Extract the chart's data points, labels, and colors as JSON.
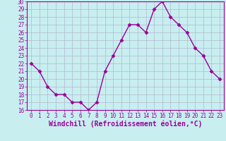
{
  "x": [
    0,
    1,
    2,
    3,
    4,
    5,
    6,
    7,
    8,
    9,
    10,
    11,
    12,
    13,
    14,
    15,
    16,
    17,
    18,
    19,
    20,
    21,
    22,
    23
  ],
  "y": [
    22,
    21,
    19,
    18,
    18,
    17,
    17,
    16,
    17,
    21,
    23,
    25,
    27,
    27,
    26,
    29,
    30,
    28,
    27,
    26,
    24,
    23,
    21,
    20
  ],
  "line_color": "#990099",
  "marker": "D",
  "marker_size": 2.5,
  "bg_color": "#c8eef0",
  "grid_color": "#b0b8d0",
  "xlabel": "Windchill (Refroidissement éolien,°C)",
  "xlabel_color": "#990099",
  "xlim": [
    -0.5,
    23.5
  ],
  "ylim": [
    16,
    30
  ],
  "yticks": [
    16,
    17,
    18,
    19,
    20,
    21,
    22,
    23,
    24,
    25,
    26,
    27,
    28,
    29,
    30
  ],
  "xticks": [
    0,
    1,
    2,
    3,
    4,
    5,
    6,
    7,
    8,
    9,
    10,
    11,
    12,
    13,
    14,
    15,
    16,
    17,
    18,
    19,
    20,
    21,
    22,
    23
  ],
  "tick_label_size": 5.5,
  "xlabel_size": 7,
  "line_width": 1.0,
  "border_color": "#990099"
}
